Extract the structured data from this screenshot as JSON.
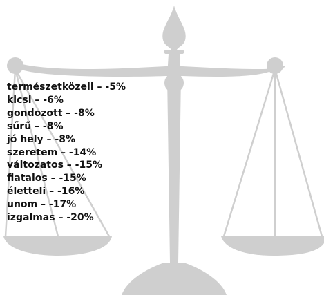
{
  "items": [
    "természetközeli – -5%",
    "kicsi – -6%",
    "gondozott – -8%",
    "sűrű – -8%",
    "jó hely – -8%",
    "szeretem – -14%",
    "változatos – -15%",
    "fiatalos – -15%",
    "életteli – -16%",
    "unom – -17%",
    "izgalmas – -20%"
  ]
}
